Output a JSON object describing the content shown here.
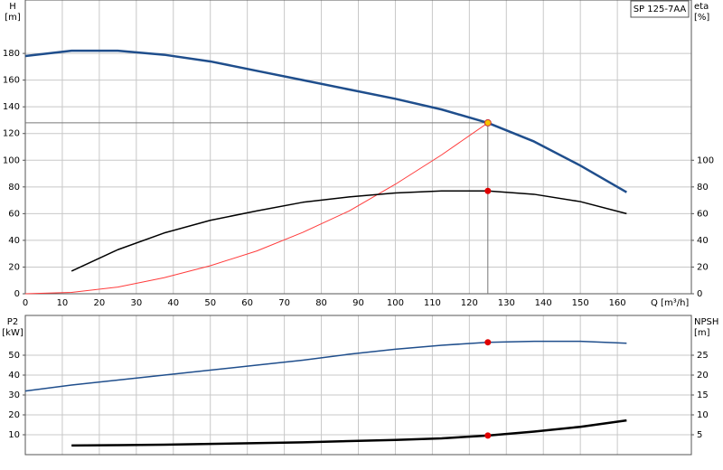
{
  "chart_data": [
    {
      "type": "line",
      "box_label": "SP 125-7AA",
      "ylabel": "H",
      "yunit": "[m]",
      "y2label": "eta",
      "y2unit": "[%]",
      "xlabel": "Q [m³/h]",
      "xlim": [
        0,
        180
      ],
      "xticks": [
        0,
        10,
        20,
        30,
        40,
        50,
        60,
        70,
        80,
        90,
        100,
        110,
        120,
        130,
        140,
        150,
        160
      ],
      "ylim": [
        0,
        220
      ],
      "yticks": [
        0,
        20,
        40,
        60,
        80,
        100,
        120,
        140,
        160,
        180
      ],
      "y2lim": [
        0,
        220
      ],
      "y2ticks": [
        0,
        20,
        40,
        60,
        80,
        100
      ],
      "grid": true,
      "show_xtick_labels": true,
      "crosshair": true,
      "series": [
        {
          "color": "#ff3b3b",
          "width": 1,
          "x": [
            0,
            12.5,
            25,
            37.5,
            50,
            62.5,
            75,
            87.5,
            100,
            112.5,
            125
          ],
          "values": [
            0,
            1,
            5,
            12,
            21,
            32,
            46,
            62,
            82,
            104,
            128
          ]
        },
        {
          "color": "#000000",
          "width": 1.5,
          "axis": "y2",
          "x": [
            12.5,
            25,
            37.5,
            50,
            62.5,
            75,
            87.5,
            100,
            112.5,
            125,
            137.5,
            150,
            162.5
          ],
          "values": [
            17,
            33,
            45.5,
            55,
            62,
            68.5,
            72.5,
            75.5,
            77,
            77,
            74.5,
            69,
            60
          ]
        },
        {
          "color": "#1f4e8c",
          "width": 2.5,
          "x": [
            0,
            12.5,
            25,
            37.5,
            50,
            62.5,
            75,
            87.5,
            100,
            112.5,
            125,
            137.5,
            150,
            162.5
          ],
          "values": [
            178,
            182,
            182,
            179,
            174,
            167,
            160,
            153,
            146,
            138,
            128,
            114,
            96,
            76
          ]
        }
      ],
      "points": [
        {
          "x": 125,
          "y": 128,
          "color": "#f5c400"
        },
        {
          "x": 125,
          "y": 77,
          "axis": "y2",
          "color": "#e00000"
        }
      ]
    },
    {
      "type": "line",
      "ylabel": "P2",
      "yunit": "[kW]",
      "y2label": "NPSH",
      "y2unit": "[m]",
      "xlim": [
        0,
        180
      ],
      "xticks": [
        0,
        10,
        20,
        30,
        40,
        50,
        60,
        70,
        80,
        90,
        100,
        110,
        120,
        130,
        140,
        150,
        160
      ],
      "ylim": [
        0,
        70
      ],
      "yticks": [
        10,
        20,
        30,
        40,
        50
      ],
      "y2lim": [
        0,
        35
      ],
      "y2ticks": [
        5,
        10,
        15,
        20,
        25
      ],
      "grid": true,
      "show_xtick_labels": false,
      "crosshair": false,
      "series": [
        {
          "color": "#1f4e8c",
          "width": 1.5,
          "x": [
            0,
            12.5,
            25,
            37.5,
            50,
            62.5,
            75,
            87.5,
            100,
            112.5,
            125,
            137.5,
            150,
            162.5
          ],
          "values": [
            32,
            35,
            37.5,
            40,
            42.5,
            45,
            47.5,
            50.5,
            53,
            55,
            56.5,
            57,
            57,
            56
          ]
        },
        {
          "color": "#000000",
          "width": 2.5,
          "axis": "y2",
          "x": [
            12.5,
            25,
            37.5,
            50,
            62.5,
            75,
            87.5,
            100,
            112.5,
            125,
            137.5,
            150,
            162.5
          ],
          "values": [
            2.3,
            2.4,
            2.5,
            2.7,
            2.9,
            3.1,
            3.4,
            3.7,
            4.1,
            4.8,
            5.8,
            7,
            8.6
          ]
        }
      ],
      "points": [
        {
          "x": 125,
          "y": 56.5,
          "color": "#e00000"
        },
        {
          "x": 125,
          "y": 4.8,
          "axis": "y2",
          "color": "#e00000"
        }
      ]
    }
  ]
}
